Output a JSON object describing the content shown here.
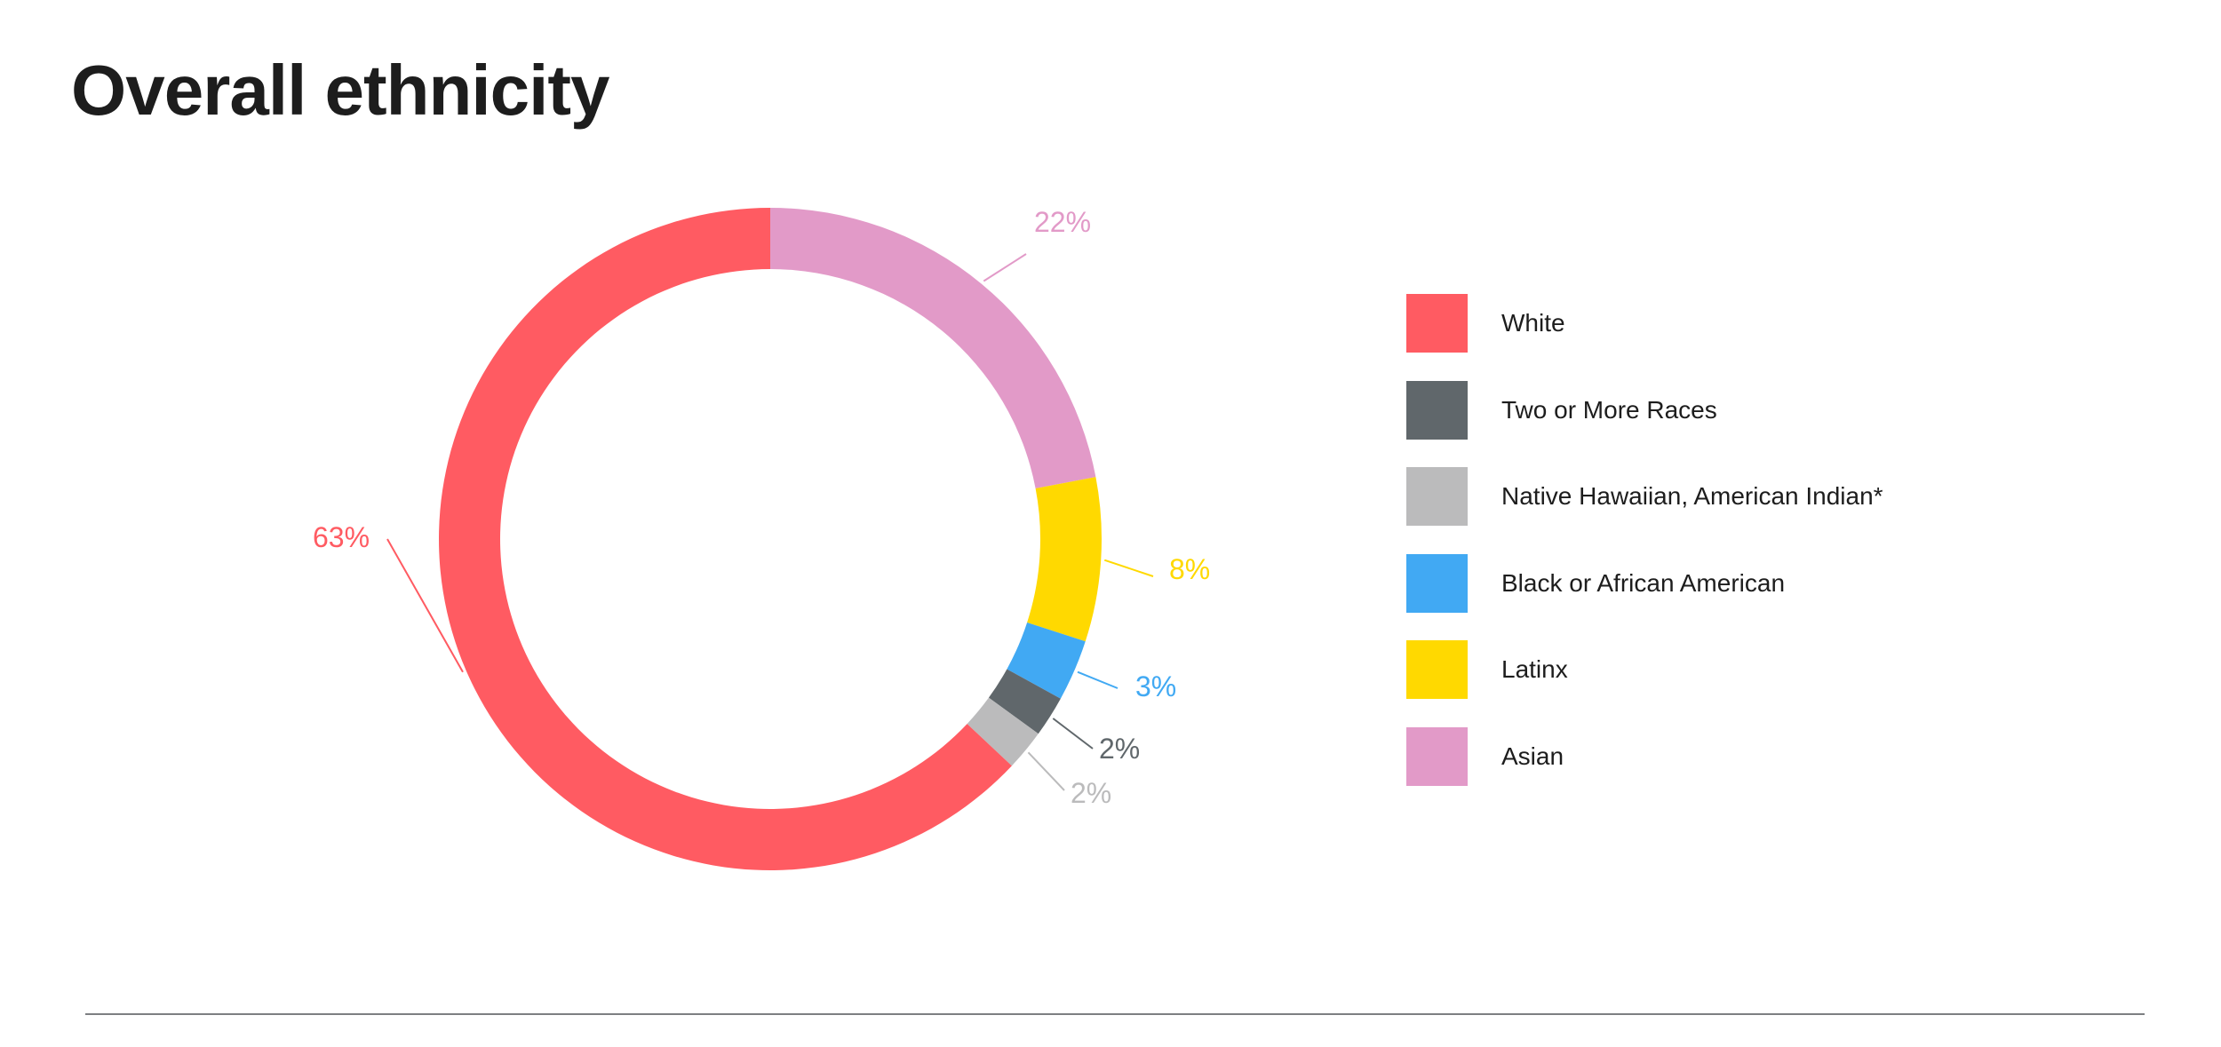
{
  "chart_data": {
    "type": "pie",
    "title": "Overall ethnicity",
    "donut": true,
    "legend_position": "right",
    "slices": [
      {
        "name": "Asian",
        "value": 22,
        "label": "22%",
        "color": "#e29ac8"
      },
      {
        "name": "Latinx",
        "value": 8,
        "label": "8%",
        "color": "#ffd900"
      },
      {
        "name": "Black or African American",
        "value": 3,
        "label": "3%",
        "color": "#41a9f3"
      },
      {
        "name": "Two or More Races",
        "value": 2,
        "label": "2%",
        "color": "#60676b"
      },
      {
        "name": "Native Hawaiian, American Indian*",
        "value": 2,
        "label": "2%",
        "color": "#bbbbbc"
      },
      {
        "name": "White",
        "value": 63,
        "label": "63%",
        "color": "#ff5b62"
      }
    ],
    "legend": [
      {
        "name": "White",
        "color": "#ff5b62"
      },
      {
        "name": "Two or More Races",
        "color": "#60676b"
      },
      {
        "name": "Native Hawaiian, American Indian*",
        "color": "#bbbbbc"
      },
      {
        "name": "Black or African American",
        "color": "#41a9f3"
      },
      {
        "name": "Latinx",
        "color": "#ffd900"
      },
      {
        "name": "Asian",
        "color": "#e29ac8"
      }
    ]
  }
}
